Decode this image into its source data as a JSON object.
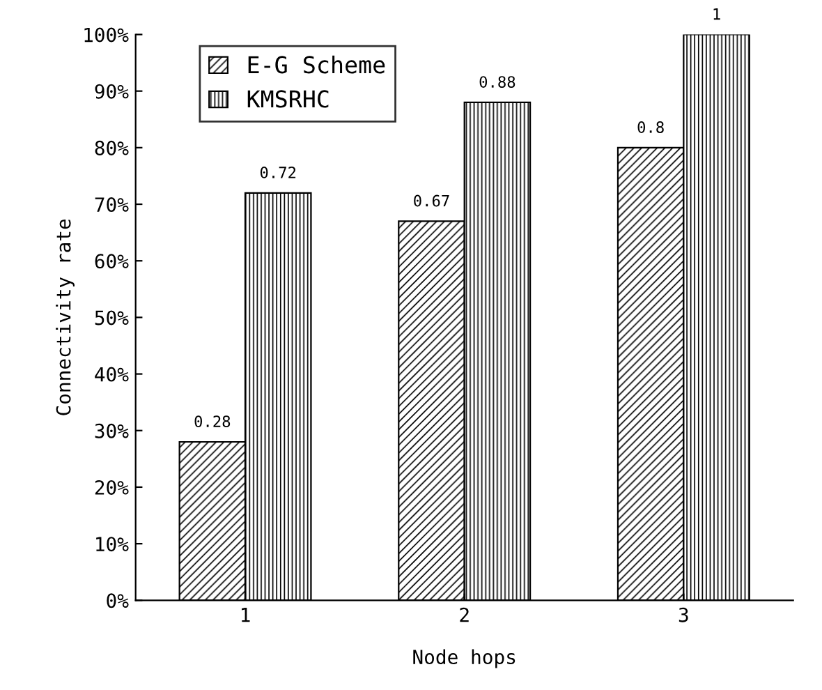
{
  "chart_data": {
    "type": "bar",
    "xlabel": "Node hops",
    "ylabel": "Connectivity rate",
    "categories": [
      "1",
      "2",
      "3"
    ],
    "series": [
      {
        "name": "E-G Scheme",
        "color": "#000000",
        "values": [
          0.28,
          0.67,
          0.8
        ],
        "value_labels": [
          "0.28",
          "0.67",
          "0.8"
        ]
      },
      {
        "name": "KMSRHC",
        "color": "#000000",
        "values": [
          0.72,
          0.88,
          1
        ],
        "value_labels": [
          "0.72",
          "0.88",
          "1"
        ]
      }
    ],
    "ylim": [
      0,
      1
    ],
    "yticks": [
      {
        "value": 0,
        "label": "0%"
      },
      {
        "value": 0.1,
        "label": "10%"
      },
      {
        "value": 0.2,
        "label": "20%"
      },
      {
        "value": 0.3,
        "label": "30%"
      },
      {
        "value": 0.4,
        "label": "40%"
      },
      {
        "value": 0.5,
        "label": "50%"
      },
      {
        "value": 0.6,
        "label": "60%"
      },
      {
        "value": 0.7,
        "label": "70%"
      },
      {
        "value": 0.8,
        "label": "80%"
      },
      {
        "value": 0.9,
        "label": "90%"
      },
      {
        "value": 1,
        "label": "100%"
      }
    ],
    "grid": false,
    "legend": "top left"
  }
}
